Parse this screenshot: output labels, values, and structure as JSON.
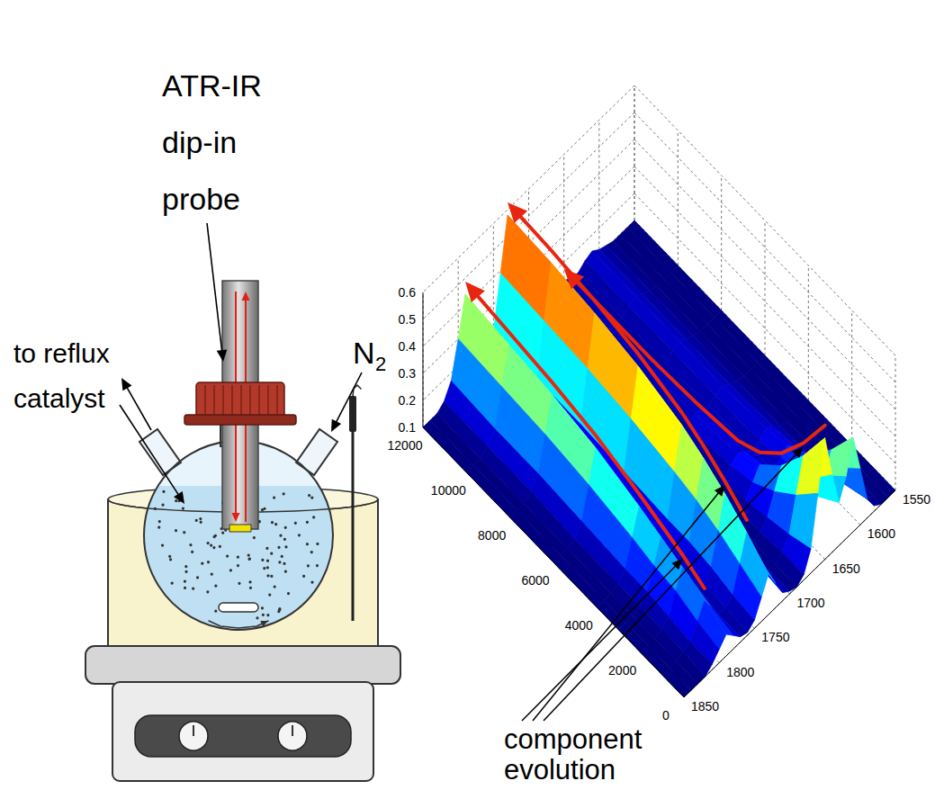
{
  "apparatus": {
    "probe_label": [
      "ATR-IR",
      "dip-in",
      "probe"
    ],
    "outlet_label": "to reflux",
    "inlet_label": {
      "text": "N",
      "subscript": "2"
    },
    "catalyst_label": "catalyst"
  },
  "chart_data": {
    "type": "surface",
    "x": [
      0,
      1000,
      2000,
      3000,
      4000,
      6000,
      8000,
      10000,
      12000
    ],
    "y": [
      1550,
      1560,
      1570,
      1580,
      1590,
      1600,
      1610,
      1620,
      1630,
      1640,
      1650,
      1660,
      1670,
      1680,
      1690,
      1700,
      1710,
      1720,
      1730,
      1740,
      1750,
      1760,
      1770,
      1780,
      1790,
      1800,
      1810,
      1820,
      1830,
      1840,
      1850
    ],
    "z": [
      [
        0.1,
        0.1,
        0.1,
        0.12,
        0.17,
        0.31,
        0.45,
        0.33,
        0.26,
        0.39,
        0.55,
        0.37,
        0.19,
        0.12,
        0.1,
        0.11,
        0.13,
        0.19,
        0.25,
        0.19,
        0.13,
        0.11,
        0.12,
        0.15,
        0.18,
        0.15,
        0.12,
        0.1,
        0.1,
        0.1,
        0.1
      ],
      [
        0.1,
        0.1,
        0.1,
        0.11,
        0.14,
        0.23,
        0.32,
        0.25,
        0.2,
        0.29,
        0.4,
        0.28,
        0.16,
        0.12,
        0.1,
        0.11,
        0.14,
        0.23,
        0.32,
        0.23,
        0.14,
        0.12,
        0.12,
        0.17,
        0.22,
        0.17,
        0.12,
        0.11,
        0.1,
        0.1,
        0.1
      ],
      [
        0.1,
        0.1,
        0.1,
        0.11,
        0.12,
        0.17,
        0.22,
        0.18,
        0.16,
        0.21,
        0.28,
        0.21,
        0.14,
        0.11,
        0.1,
        0.11,
        0.16,
        0.27,
        0.38,
        0.27,
        0.16,
        0.12,
        0.13,
        0.2,
        0.26,
        0.2,
        0.13,
        0.11,
        0.1,
        0.1,
        0.1
      ],
      [
        0.1,
        0.1,
        0.1,
        0.1,
        0.11,
        0.14,
        0.17,
        0.15,
        0.13,
        0.16,
        0.2,
        0.16,
        0.12,
        0.11,
        0.1,
        0.12,
        0.17,
        0.3,
        0.43,
        0.3,
        0.17,
        0.13,
        0.14,
        0.21,
        0.29,
        0.21,
        0.14,
        0.11,
        0.1,
        0.1,
        0.1
      ],
      [
        0.1,
        0.1,
        0.1,
        0.1,
        0.11,
        0.13,
        0.15,
        0.13,
        0.12,
        0.14,
        0.16,
        0.14,
        0.11,
        0.1,
        0.1,
        0.12,
        0.17,
        0.32,
        0.47,
        0.32,
        0.17,
        0.13,
        0.14,
        0.23,
        0.32,
        0.23,
        0.14,
        0.11,
        0.1,
        0.1,
        0.1
      ],
      [
        0.1,
        0.1,
        0.1,
        0.1,
        0.11,
        0.12,
        0.14,
        0.13,
        0.12,
        0.13,
        0.14,
        0.12,
        0.11,
        0.1,
        0.1,
        0.12,
        0.18,
        0.35,
        0.52,
        0.35,
        0.18,
        0.13,
        0.15,
        0.26,
        0.37,
        0.26,
        0.15,
        0.11,
        0.1,
        0.1,
        0.1
      ],
      [
        0.1,
        0.1,
        0.1,
        0.1,
        0.11,
        0.12,
        0.14,
        0.13,
        0.11,
        0.12,
        0.13,
        0.12,
        0.11,
        0.1,
        0.1,
        0.12,
        0.19,
        0.37,
        0.55,
        0.37,
        0.19,
        0.14,
        0.16,
        0.28,
        0.4,
        0.28,
        0.16,
        0.12,
        0.1,
        0.1,
        0.1
      ],
      [
        0.1,
        0.1,
        0.1,
        0.1,
        0.11,
        0.12,
        0.14,
        0.13,
        0.11,
        0.12,
        0.13,
        0.12,
        0.11,
        0.1,
        0.1,
        0.12,
        0.19,
        0.38,
        0.57,
        0.38,
        0.19,
        0.14,
        0.16,
        0.29,
        0.42,
        0.29,
        0.16,
        0.12,
        0.1,
        0.1,
        0.1
      ],
      [
        0.1,
        0.1,
        0.1,
        0.1,
        0.11,
        0.12,
        0.14,
        0.13,
        0.11,
        0.12,
        0.13,
        0.12,
        0.11,
        0.1,
        0.1,
        0.12,
        0.2,
        0.39,
        0.58,
        0.39,
        0.2,
        0.14,
        0.17,
        0.3,
        0.44,
        0.3,
        0.17,
        0.12,
        0.1,
        0.1,
        0.1
      ]
    ],
    "xlim": [
      0,
      12000
    ],
    "xticks": [
      0,
      2000,
      4000,
      6000,
      8000,
      10000,
      12000
    ],
    "ylim": [
      1550,
      1850
    ],
    "yticks": [
      1550,
      1600,
      1650,
      1700,
      1750,
      1800,
      1850
    ],
    "zlim": [
      0.1,
      0.6
    ],
    "zticks": [
      0.1,
      0.2,
      0.3,
      0.4,
      0.5,
      0.6
    ],
    "grid": true
  },
  "annotation": {
    "text": [
      "component",
      "evolution"
    ]
  }
}
